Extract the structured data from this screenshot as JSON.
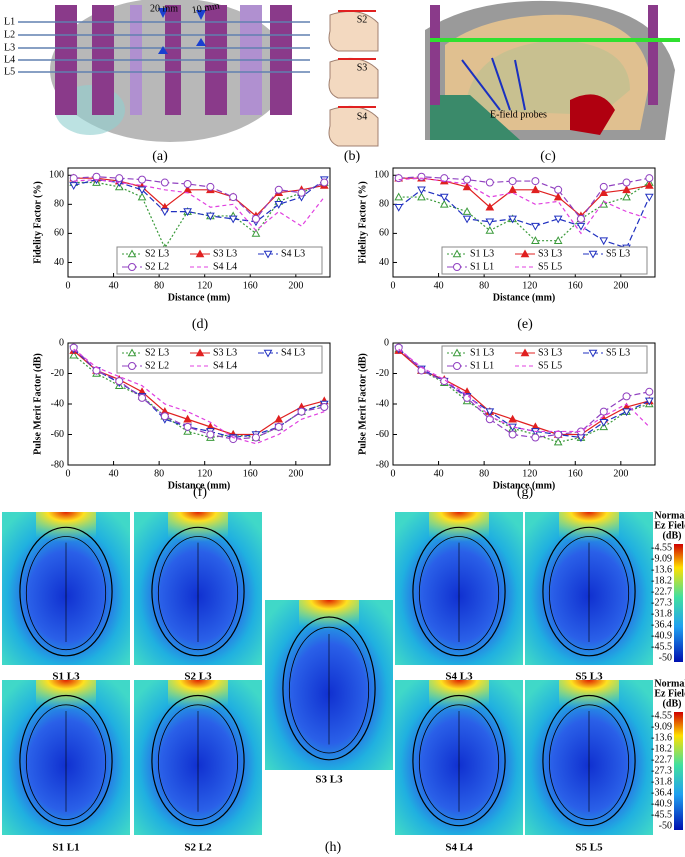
{
  "figure": {
    "panel_a": {
      "layers": [
        "L1",
        "L2",
        "L3",
        "L4",
        "L5"
      ],
      "spacings": [
        "20 mm",
        "10 mm"
      ]
    },
    "panel_b": {
      "subjects": [
        "S2",
        "S3",
        "S4"
      ]
    },
    "panel_c": {
      "annotation": "E-field probes"
    },
    "captions": [
      "(a)",
      "(b)",
      "(c)",
      "(d)",
      "(e)",
      "(f)",
      "(g)",
      "(h)"
    ],
    "heatmaps": [
      "S1 L3",
      "S2 L3",
      "S3 L3",
      "S4 L3",
      "S5 L3",
      "S1 L1",
      "S2 L2",
      "S4 L4",
      "S5 L5"
    ],
    "colorbar": {
      "title": [
        "Normal.",
        "Ez Field",
        "(dB)"
      ],
      "ticks": [
        "-4.55",
        "-9.09",
        "-13.6",
        "-18.2",
        "-22.7",
        "-27.3",
        "-31.8",
        "-36.4",
        "-40.9",
        "-45.5",
        "-50"
      ]
    }
  },
  "chart_data": [
    {
      "type": "line",
      "xlabel": "Distance (mm)",
      "ylabel": "Fidelity Factor (%)",
      "x": [
        5,
        25,
        45,
        65,
        85,
        105,
        125,
        145,
        165,
        185,
        205,
        225
      ],
      "xlim": [
        0,
        230
      ],
      "xticks": [
        0,
        40,
        80,
        120,
        160,
        200
      ],
      "ylim": [
        30,
        105
      ],
      "yticks": [
        40,
        60,
        80,
        100
      ],
      "legend": "lower",
      "series": [
        {
          "name": "S2 L3",
          "color": "#3a9a3a",
          "dash": "2 2",
          "marker": "triangle",
          "values": [
            95,
            95,
            92,
            85,
            50,
            75,
            72,
            72,
            60,
            82,
            88,
            95
          ]
        },
        {
          "name": "S3 L3",
          "color": "#e02020",
          "dash": "none",
          "marker": "triangle-filled",
          "values": [
            98,
            98,
            96,
            92,
            78,
            90,
            90,
            85,
            72,
            88,
            90,
            93
          ]
        },
        {
          "name": "S4 L3",
          "color": "#2030c0",
          "dash": "6 3",
          "marker": "triangle-down",
          "values": [
            93,
            97,
            95,
            90,
            75,
            75,
            72,
            70,
            68,
            80,
            85,
            97
          ]
        },
        {
          "name": "S2 L2",
          "color": "#9040c0",
          "dash": "6 3",
          "marker": "circle",
          "values": [
            98,
            99,
            98,
            97,
            95,
            94,
            92,
            85,
            70,
            90,
            88,
            95
          ]
        },
        {
          "name": "S4 L4",
          "color": "#e040e0",
          "dash": "4 3",
          "marker": "none",
          "values": [
            96,
            97,
            95,
            93,
            90,
            88,
            78,
            80,
            62,
            75,
            65,
            85
          ]
        }
      ]
    },
    {
      "type": "line",
      "xlabel": "Distance (mm)",
      "ylabel": "Fidelity Factor (%)",
      "x": [
        5,
        25,
        45,
        65,
        85,
        105,
        125,
        145,
        165,
        185,
        205,
        225
      ],
      "xlim": [
        0,
        230
      ],
      "xticks": [
        0,
        40,
        80,
        120,
        160,
        200
      ],
      "ylim": [
        30,
        105
      ],
      "yticks": [
        40,
        60,
        80,
        100
      ],
      "legend": "lower",
      "series": [
        {
          "name": "S1 L3",
          "color": "#3a9a3a",
          "dash": "2 2",
          "marker": "triangle",
          "values": [
            85,
            85,
            80,
            75,
            62,
            70,
            55,
            55,
            70,
            80,
            85,
            95
          ]
        },
        {
          "name": "S3 L3",
          "color": "#e02020",
          "dash": "none",
          "marker": "triangle-filled",
          "values": [
            98,
            98,
            96,
            92,
            78,
            90,
            90,
            85,
            72,
            88,
            90,
            93
          ]
        },
        {
          "name": "S5 L3",
          "color": "#2030c0",
          "dash": "6 3",
          "marker": "triangle-down",
          "values": [
            78,
            90,
            85,
            70,
            68,
            70,
            65,
            70,
            65,
            55,
            50,
            85
          ]
        },
        {
          "name": "S1 L1",
          "color": "#9040c0",
          "dash": "6 3",
          "marker": "circle",
          "values": [
            98,
            99,
            98,
            97,
            95,
            96,
            96,
            90,
            70,
            92,
            95,
            98
          ]
        },
        {
          "name": "S5 L5",
          "color": "#e040e0",
          "dash": "4 3",
          "marker": "none",
          "values": [
            97,
            98,
            96,
            94,
            85,
            88,
            80,
            82,
            60,
            82,
            75,
            70
          ]
        }
      ]
    },
    {
      "type": "line",
      "xlabel": "Distance (mm)",
      "ylabel": "Pulse Merit Factor (dB)",
      "x": [
        5,
        25,
        45,
        65,
        85,
        105,
        125,
        145,
        165,
        185,
        205,
        225
      ],
      "xlim": [
        0,
        230
      ],
      "xticks": [
        0,
        40,
        80,
        120,
        160,
        200
      ],
      "ylim": [
        -80,
        0
      ],
      "yticks": [
        -80,
        -60,
        -40,
        -20,
        0
      ],
      "legend": "upper",
      "series": [
        {
          "name": "S2 L3",
          "color": "#3a9a3a",
          "dash": "2 2",
          "marker": "triangle",
          "values": [
            -8,
            -20,
            -28,
            -35,
            -48,
            -58,
            -62,
            -60,
            -62,
            -55,
            -45,
            -40
          ]
        },
        {
          "name": "S3 L3",
          "color": "#e02020",
          "dash": "none",
          "marker": "triangle-filled",
          "values": [
            -5,
            -18,
            -24,
            -32,
            -45,
            -50,
            -55,
            -60,
            -60,
            -50,
            -42,
            -38
          ]
        },
        {
          "name": "S4 L3",
          "color": "#2030c0",
          "dash": "6 3",
          "marker": "triangle-down",
          "values": [
            -4,
            -18,
            -26,
            -35,
            -50,
            -55,
            -58,
            -62,
            -60,
            -55,
            -45,
            -40
          ]
        },
        {
          "name": "S2 L2",
          "color": "#9040c0",
          "dash": "6 3",
          "marker": "circle",
          "values": [
            -3,
            -18,
            -25,
            -36,
            -48,
            -55,
            -60,
            -63,
            -62,
            -55,
            -45,
            -42
          ]
        },
        {
          "name": "S4 L4",
          "color": "#e040e0",
          "dash": "4 3",
          "marker": "none",
          "values": [
            -4,
            -16,
            -22,
            -28,
            -40,
            -45,
            -52,
            -62,
            -66,
            -60,
            -50,
            -45
          ]
        }
      ]
    },
    {
      "type": "line",
      "xlabel": "Distance (mm)",
      "ylabel": "Pulse Merit Factor (dB)",
      "x": [
        5,
        25,
        45,
        65,
        85,
        105,
        125,
        145,
        165,
        185,
        205,
        225
      ],
      "xlim": [
        0,
        230
      ],
      "xticks": [
        0,
        40,
        80,
        120,
        160,
        200
      ],
      "ylim": [
        -80,
        0
      ],
      "yticks": [
        -80,
        -60,
        -40,
        -20,
        0
      ],
      "legend": "upper",
      "series": [
        {
          "name": "S1 L3",
          "color": "#3a9a3a",
          "dash": "2 2",
          "marker": "triangle",
          "values": [
            -4,
            -18,
            -26,
            -38,
            -48,
            -56,
            -60,
            -65,
            -62,
            -55,
            -45,
            -40
          ]
        },
        {
          "name": "S3 L3",
          "color": "#e02020",
          "dash": "none",
          "marker": "triangle-filled",
          "values": [
            -5,
            -18,
            -24,
            -32,
            -45,
            -50,
            -55,
            -60,
            -60,
            -50,
            -42,
            -38
          ]
        },
        {
          "name": "S5 L3",
          "color": "#2030c0",
          "dash": "6 3",
          "marker": "triangle-down",
          "values": [
            -4,
            -17,
            -25,
            -35,
            -45,
            -55,
            -58,
            -60,
            -62,
            -52,
            -45,
            -38
          ]
        },
        {
          "name": "S1 L1",
          "color": "#9040c0",
          "dash": "6 3",
          "marker": "circle",
          "values": [
            -3,
            -18,
            -25,
            -36,
            -50,
            -60,
            -62,
            -60,
            -58,
            -45,
            -35,
            -32
          ]
        },
        {
          "name": "S5 L5",
          "color": "#e040e0",
          "dash": "4 3",
          "marker": "none",
          "values": [
            -4,
            -16,
            -24,
            -34,
            -48,
            -55,
            -58,
            -58,
            -58,
            -48,
            -40,
            -55
          ]
        }
      ]
    }
  ]
}
